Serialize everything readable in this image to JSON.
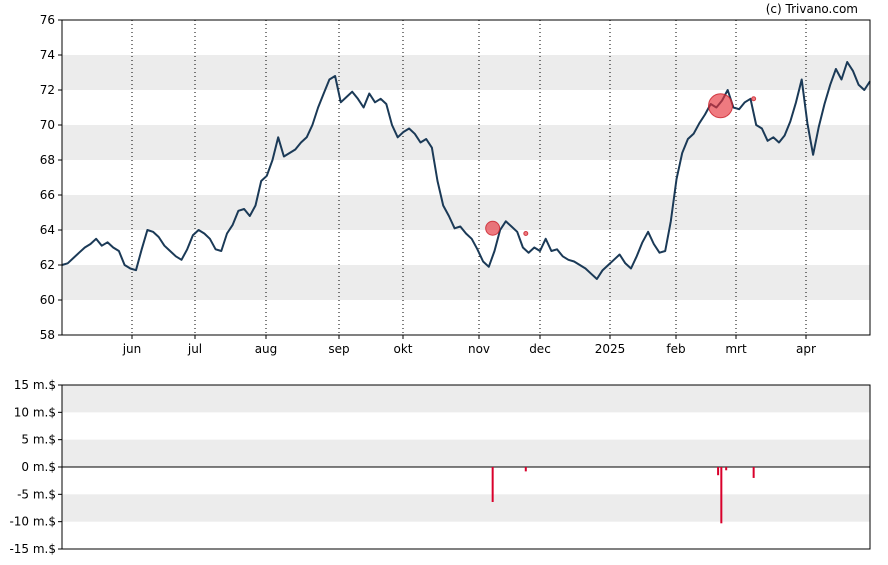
{
  "credit": "(c) Trivano.com",
  "chart_data": [
    {
      "type": "line",
      "y_ticks": [
        "58",
        "60",
        "62",
        "64",
        "66",
        "68",
        "70",
        "72",
        "74",
        "76"
      ],
      "ylim": [
        58,
        76
      ],
      "x_ticks": [
        "jun",
        "jul",
        "aug",
        "sep",
        "okt",
        "nov",
        "dec",
        "2025",
        "feb",
        "mrt",
        "apr"
      ],
      "grid": "horizontal bands, dotted vertical month lines",
      "series": [
        {
          "line_color": "#1b3a57",
          "values": [
            62.0,
            62.1,
            62.4,
            62.7,
            63.0,
            63.2,
            63.5,
            63.1,
            63.3,
            63.0,
            62.8,
            62.0,
            61.8,
            61.7,
            62.9,
            64.0,
            63.9,
            63.6,
            63.1,
            62.8,
            62.5,
            62.3,
            62.9,
            63.7,
            64.0,
            63.8,
            63.5,
            62.9,
            62.8,
            63.8,
            64.3,
            65.1,
            65.2,
            64.8,
            65.4,
            66.8,
            67.1,
            68.0,
            69.3,
            68.2,
            68.4,
            68.6,
            69.0,
            69.3,
            70.0,
            71.0,
            71.8,
            72.6,
            72.8,
            71.3,
            71.6,
            71.9,
            71.5,
            71.0,
            71.8,
            71.3,
            71.5,
            71.2,
            70.0,
            69.3,
            69.6,
            69.8,
            69.5,
            69.0,
            69.2,
            68.7,
            66.8,
            65.4,
            64.8,
            64.1,
            64.2,
            63.8,
            63.5,
            62.9,
            62.2,
            61.9,
            62.8,
            64.0,
            64.5,
            64.2,
            63.9,
            63.0,
            62.7,
            63.0,
            62.8,
            63.5,
            62.8,
            62.9,
            62.5,
            62.3,
            62.2,
            62.0,
            61.8,
            61.5,
            61.2,
            61.7,
            62.0,
            62.3,
            62.6,
            62.1,
            61.8,
            62.5,
            63.3,
            63.9,
            63.2,
            62.7,
            62.8,
            64.5,
            66.9,
            68.4,
            69.2,
            69.5,
            70.1,
            70.6,
            71.2,
            71.0,
            71.4,
            72.0,
            71.0,
            70.9,
            71.3,
            71.5,
            70.0,
            69.8,
            69.1,
            69.3,
            69.0,
            69.4,
            70.2,
            71.3,
            72.6,
            70.1,
            68.3,
            69.9,
            71.2,
            72.3,
            73.2,
            72.6,
            73.6,
            73.1,
            72.3,
            72.0,
            72.5
          ],
          "annotations": [
            {
              "x": 0.533,
              "y": 64.1,
              "size": "medium"
            },
            {
              "x": 0.574,
              "y": 63.8,
              "size": "small"
            },
            {
              "x": 0.815,
              "y": 71.1,
              "size": "large"
            },
            {
              "x": 0.856,
              "y": 71.5,
              "size": "small"
            }
          ]
        }
      ]
    },
    {
      "type": "bar",
      "y_ticks": [
        "15 m.$",
        "10 m.$",
        "5 m.$",
        "0 m.$",
        "-5 m.$",
        "-10 m.$",
        "-15 m.$"
      ],
      "ylim": [
        -15,
        15
      ],
      "series": [
        {
          "bar_color": "#d9002b",
          "bars": [
            {
              "x": 0.533,
              "value": -6.4
            },
            {
              "x": 0.574,
              "value": -0.8
            },
            {
              "x": 0.812,
              "value": -1.5
            },
            {
              "x": 0.816,
              "value": -10.3
            },
            {
              "x": 0.822,
              "value": -0.6
            },
            {
              "x": 0.856,
              "value": -2.0
            }
          ]
        }
      ]
    }
  ]
}
